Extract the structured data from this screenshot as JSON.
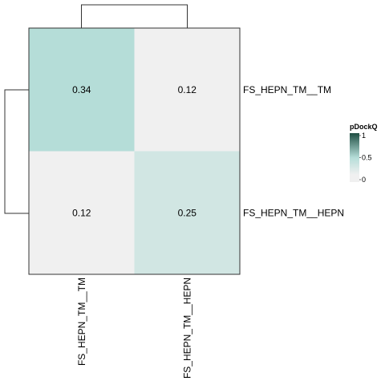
{
  "chart_data": {
    "type": "heatmap",
    "rows": [
      "FS_HEPN_TM__TM",
      "FS_HEPN_TM__HEPN"
    ],
    "columns": [
      "FS_HEPN_TM__TM",
      "FS_HEPN_TM__HEPN"
    ],
    "values": [
      [
        0.34,
        0.12
      ],
      [
        0.12,
        0.25
      ]
    ],
    "cell_labels": [
      [
        "0.34",
        "0.12"
      ],
      [
        "0.12",
        "0.25"
      ]
    ],
    "legend": {
      "title": "pDockQ",
      "ticks": [
        "0",
        "0.5",
        "1"
      ],
      "range": [
        0,
        1
      ],
      "colors": [
        "#f0f0f0",
        "#b5ddd8",
        "#1f4e43"
      ]
    },
    "dendrograms": {
      "rows": true,
      "columns": true
    }
  }
}
